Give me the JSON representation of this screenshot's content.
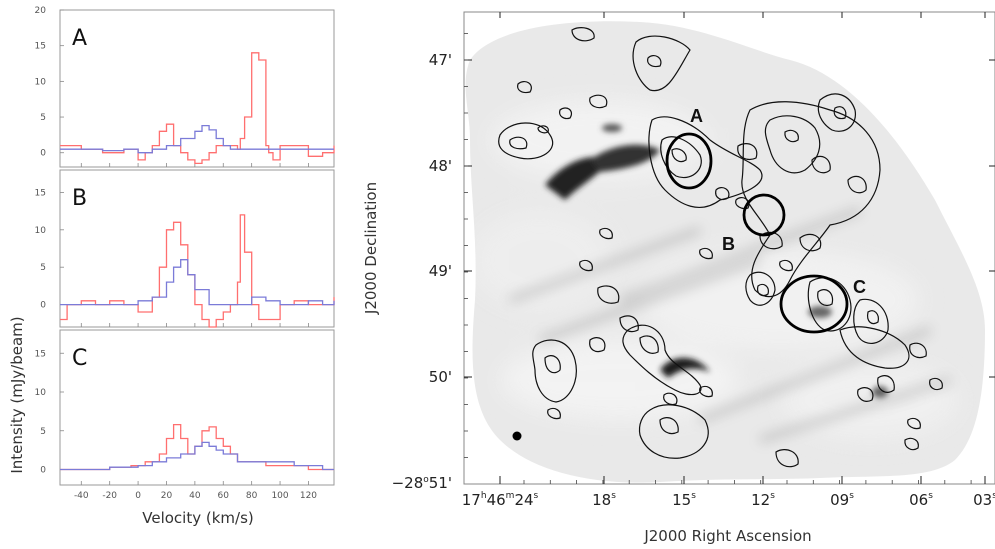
{
  "chart_data": [
    {
      "type": "line",
      "panels": [
        {
          "label": "A",
          "ylim": [
            -2,
            20
          ],
          "yticks": [
            0,
            5,
            10,
            15,
            20
          ],
          "series": [
            {
              "color": "#ff6f6f",
              "x": [
                -55,
                -40,
                -25,
                -10,
                0,
                5,
                10,
                15,
                20,
                25,
                30,
                35,
                40,
                45,
                50,
                55,
                60,
                65,
                70,
                72,
                75,
                80,
                85,
                90,
                92,
                95,
                100,
                110,
                120,
                130,
                138
              ],
              "y": [
                1,
                0.5,
                0,
                0.5,
                -1,
                0,
                1,
                3,
                4,
                1,
                0,
                -1,
                -1.5,
                -1,
                0,
                1,
                1,
                1,
                0.5,
                2,
                5,
                14,
                13,
                1,
                0,
                -1,
                1,
                1,
                -0.5,
                0,
                1
              ]
            },
            {
              "color": "#7b7bd8",
              "x": [
                -55,
                -40,
                -25,
                -10,
                0,
                10,
                20,
                30,
                40,
                45,
                50,
                55,
                60,
                65,
                70,
                80,
                90,
                100,
                110,
                120,
                130,
                138
              ],
              "y": [
                0.5,
                0.5,
                0.3,
                0.5,
                0,
                0.5,
                1,
                2,
                3,
                3.8,
                3.2,
                2,
                1,
                0.5,
                0.5,
                0.5,
                0.5,
                0.5,
                0.5,
                0.5,
                0.5,
                0.5
              ]
            }
          ]
        },
        {
          "label": "B",
          "ylim": [
            -3,
            18
          ],
          "yticks": [
            0,
            5,
            10,
            15
          ],
          "series": [
            {
              "color": "#ff6f6f",
              "x": [
                -55,
                -50,
                -40,
                -30,
                -20,
                -10,
                0,
                10,
                15,
                20,
                25,
                30,
                35,
                40,
                45,
                50,
                55,
                60,
                65,
                70,
                72,
                75,
                80,
                85,
                90,
                100,
                110,
                120,
                130,
                138
              ],
              "y": [
                -2,
                0,
                0.5,
                0,
                0.5,
                0,
                -1,
                1,
                5,
                10,
                11,
                8,
                4,
                0,
                -2,
                -3,
                -2,
                -1,
                0,
                3,
                12,
                7,
                0,
                -2,
                -2,
                0,
                0.5,
                0,
                0,
                1
              ]
            },
            {
              "color": "#7b7bd8",
              "x": [
                -55,
                -40,
                -20,
                0,
                10,
                20,
                25,
                30,
                35,
                40,
                50,
                60,
                70,
                80,
                90,
                100,
                110,
                120,
                130,
                138
              ],
              "y": [
                0,
                0,
                0,
                0.5,
                1,
                3,
                5,
                6,
                4,
                2,
                0,
                0,
                0,
                1,
                0.5,
                0,
                0,
                0.5,
                0,
                0.5
              ]
            }
          ]
        },
        {
          "label": "C",
          "ylim": [
            -2,
            18
          ],
          "yticks": [
            0,
            5,
            10,
            15
          ],
          "series": [
            {
              "color": "#ff6f6f",
              "x": [
                -55,
                -40,
                -20,
                -5,
                5,
                15,
                20,
                25,
                30,
                35,
                40,
                45,
                50,
                55,
                60,
                65,
                70,
                80,
                90,
                100,
                110,
                120,
                130,
                138
              ],
              "y": [
                0,
                0,
                0.3,
                0.5,
                1,
                2,
                4,
                5.8,
                4,
                2,
                3,
                5,
                5.5,
                4,
                3,
                2,
                1,
                1,
                0.5,
                0.5,
                0.5,
                0,
                0,
                0
              ]
            },
            {
              "color": "#7b7bd8",
              "x": [
                -55,
                -40,
                -20,
                0,
                10,
                20,
                30,
                40,
                45,
                50,
                55,
                60,
                70,
                80,
                90,
                100,
                110,
                120,
                130,
                138
              ],
              "y": [
                0,
                0,
                0.3,
                0.5,
                1,
                1.5,
                2,
                3,
                3.5,
                3,
                2.5,
                2,
                1,
                1,
                1,
                1,
                0.5,
                0.5,
                0,
                0
              ]
            }
          ]
        }
      ],
      "xlim": [
        -55,
        138
      ],
      "xticks": [
        -40,
        -20,
        0,
        20,
        40,
        60,
        80,
        100,
        120
      ],
      "xlabel": "Velocity (km/s)",
      "ylabel": "Intensity (mJy/beam)"
    },
    {
      "type": "image-contour",
      "xlabel": "J2000 Right Ascension",
      "ylabel": "J2000 Declination",
      "ra_ticks": [
        {
          "h": "17",
          "m": "46",
          "s": "24"
        },
        {
          "s": "18"
        },
        {
          "s": "15"
        },
        {
          "s": "12"
        },
        {
          "s": "09"
        },
        {
          "s": "06"
        },
        {
          "s": "03"
        }
      ],
      "dec_ticks": [
        "47'",
        "48'",
        "49'",
        "50'"
      ],
      "dec_bottom": {
        "deg": "−28",
        "min": "51'"
      },
      "regions": [
        {
          "label": "A"
        },
        {
          "label": "B"
        },
        {
          "label": "C"
        }
      ]
    }
  ]
}
